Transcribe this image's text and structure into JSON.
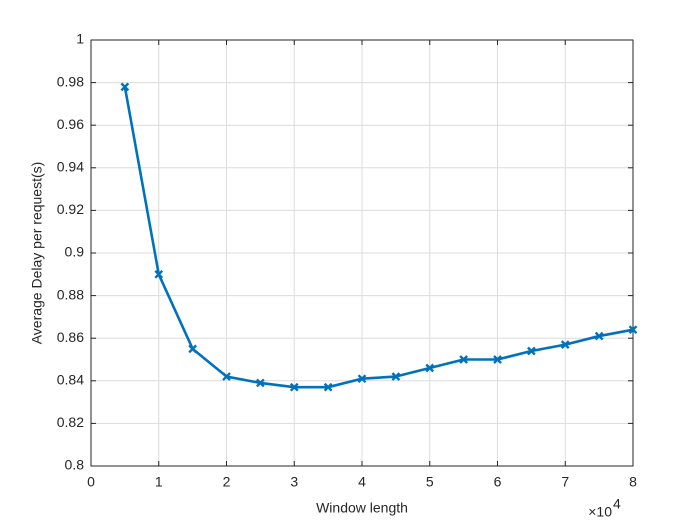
{
  "chart_data": {
    "type": "line",
    "x_label": "Window length",
    "y_label": "Average Delay per request(s)",
    "x_multiplier": {
      "base": "×10",
      "exponent": "4"
    },
    "x": [
      0.5,
      1,
      1.5,
      2,
      2.5,
      3,
      3.5,
      4,
      4.5,
      5,
      5.5,
      6,
      6.5,
      7,
      7.5,
      8
    ],
    "series": [
      {
        "color": "#0072bd",
        "values": [
          0.978,
          0.89,
          0.855,
          0.842,
          0.839,
          0.837,
          0.837,
          0.841,
          0.842,
          0.846,
          0.85,
          0.85,
          0.854,
          0.857,
          0.861,
          0.864
        ]
      }
    ],
    "xlim": [
      0,
      8
    ],
    "xticks": [
      0,
      1,
      2,
      3,
      4,
      5,
      6,
      7,
      8
    ],
    "ylim": [
      0.8,
      1
    ],
    "yticks": [
      0.8,
      0.82,
      0.84,
      0.86,
      0.88,
      0.9,
      0.92,
      0.94,
      0.96,
      0.98,
      1
    ],
    "grid": true
  }
}
